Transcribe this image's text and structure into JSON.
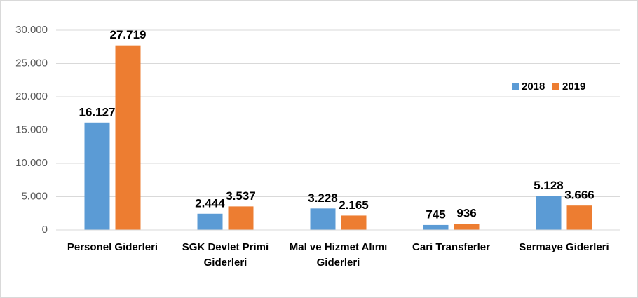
{
  "chart_data": {
    "type": "bar",
    "categories": [
      "Personel Giderleri",
      "SGK Devlet Primi Giderleri",
      "Mal ve Hizmet Alımı Giderleri",
      "Cari Transferler",
      "Sermaye Giderleri"
    ],
    "series": [
      {
        "name": "2018",
        "color": "#5b9bd5",
        "values": [
          16127,
          2444,
          3228,
          745,
          5128
        ],
        "value_labels": [
          "16.127",
          "2.444",
          "3.228",
          "745",
          "5.128"
        ]
      },
      {
        "name": "2019",
        "color": "#ed7d31",
        "values": [
          27719,
          3537,
          2165,
          936,
          3666
        ],
        "value_labels": [
          "27.719",
          "3.537",
          "2.165",
          "936",
          "3.666"
        ]
      }
    ],
    "ylim": [
      0,
      30000
    ],
    "yticks": [
      0,
      {
        "value": 5000,
        "label": "5.000"
      },
      {
        "value": 10000,
        "label": "10.000"
      },
      {
        "value": 15000,
        "label": "15.000"
      },
      {
        "value": 20000,
        "label": "20.000"
      },
      {
        "value": 25000,
        "label": "25.000"
      },
      {
        "value": 30000,
        "label": "30.000"
      }
    ],
    "grid": true,
    "legend": "right"
  }
}
